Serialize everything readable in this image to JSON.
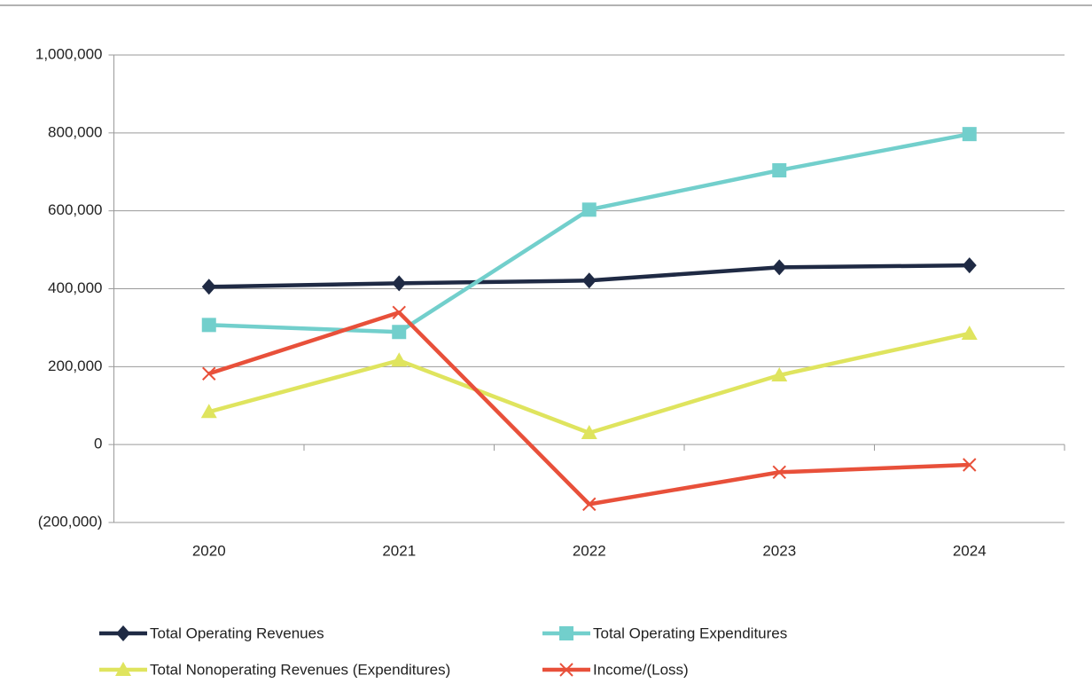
{
  "chart_data": {
    "type": "line",
    "categories": [
      "2020",
      "2021",
      "2022",
      "2023",
      "2024"
    ],
    "series": [
      {
        "name": "Total Operating Revenues",
        "color": "#1f2a44",
        "marker": "diamond",
        "values": [
          405000,
          414000,
          421000,
          455000,
          460000
        ]
      },
      {
        "name": "Total Operating Expenditures",
        "color": "#72cfcc",
        "marker": "square",
        "values": [
          307000,
          289000,
          603000,
          704000,
          797000
        ]
      },
      {
        "name": "Total Nonoperating Revenues (Expenditures)",
        "color": "#dfe45e",
        "marker": "triangle",
        "values": [
          84000,
          216000,
          30000,
          178000,
          285000
        ]
      },
      {
        "name": "Income/(Loss)",
        "color": "#e8503a",
        "marker": "x",
        "values": [
          182000,
          339000,
          -153000,
          -71000,
          -52000
        ]
      }
    ],
    "ylim": [
      -200000,
      1000000
    ],
    "yticks": [
      {
        "value": -200000,
        "label": "(200,000)"
      },
      0,
      {
        "value": 200000,
        "label": "200,000"
      },
      {
        "value": 400000,
        "label": "400,000"
      },
      {
        "value": 600000,
        "label": "600,000"
      },
      {
        "value": 800000,
        "label": "800,000"
      },
      {
        "value": 1000000,
        "label": "1,000,000"
      }
    ],
    "grid": true,
    "legend": "bottom"
  }
}
